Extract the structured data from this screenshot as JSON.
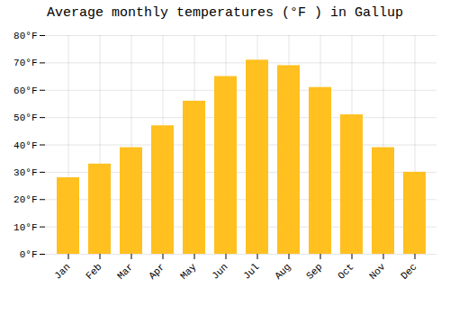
{
  "chart_data": {
    "type": "bar",
    "title": "Average monthly temperatures (°F ) in Gallup",
    "categories": [
      "Jan",
      "Feb",
      "Mar",
      "Apr",
      "May",
      "Jun",
      "Jul",
      "Aug",
      "Sep",
      "Oct",
      "Nov",
      "Dec"
    ],
    "values": [
      28,
      33,
      39,
      47,
      56,
      65,
      71,
      69,
      61,
      51,
      39,
      30
    ],
    "color": "#FFC020",
    "ylim": [
      0,
      80
    ],
    "yticks": [
      {
        "value": 0,
        "label": "0°F"
      },
      {
        "value": 10,
        "label": "10°F"
      },
      {
        "value": 20,
        "label": "20°F"
      },
      {
        "value": 30,
        "label": "30°F"
      },
      {
        "value": 40,
        "label": "40°F"
      },
      {
        "value": 50,
        "label": "50°F"
      },
      {
        "value": 60,
        "label": "60°F"
      },
      {
        "value": 70,
        "label": "70°F"
      },
      {
        "value": 80,
        "label": "80°F"
      }
    ],
    "grid": true
  }
}
